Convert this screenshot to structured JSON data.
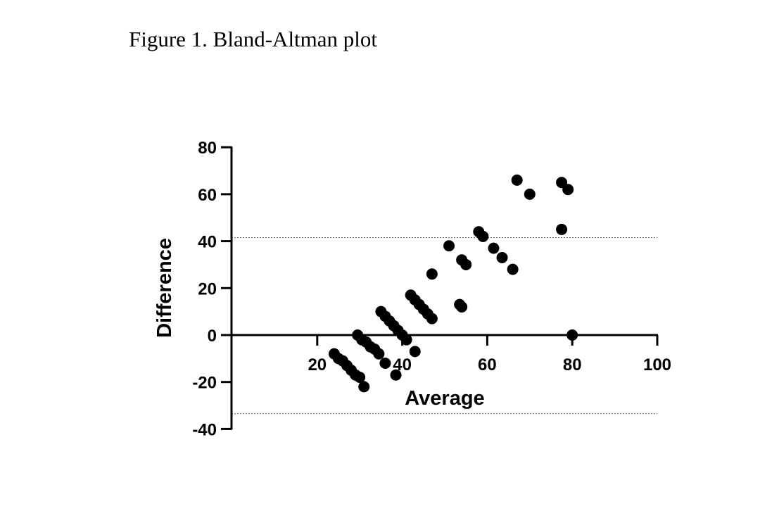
{
  "figure": {
    "caption": "Figure 1. Bland-Altman plot"
  },
  "chart_data": {
    "type": "scatter",
    "title": "",
    "xlabel": "Average",
    "ylabel": "Difference",
    "xlim": [
      0,
      100
    ],
    "ylim": [
      -40,
      80
    ],
    "x_ticks": [
      20,
      40,
      60,
      80,
      100
    ],
    "y_ticks": [
      -40,
      -20,
      0,
      20,
      40,
      60,
      80
    ],
    "limits_of_agreement": [
      41.5,
      -33.5
    ],
    "grid": false,
    "marker_color": "#000000",
    "series": [
      {
        "points": [
          [
            24,
            -8
          ],
          [
            25,
            -10
          ],
          [
            26,
            -11
          ],
          [
            27,
            -13
          ],
          [
            28,
            -15
          ],
          [
            29,
            -17
          ],
          [
            30,
            -18
          ],
          [
            31,
            -22
          ],
          [
            29.5,
            0
          ],
          [
            30.5,
            -2
          ],
          [
            31.5,
            -3
          ],
          [
            32.5,
            -5
          ],
          [
            33.5,
            -6
          ],
          [
            34.5,
            -8
          ],
          [
            35,
            10
          ],
          [
            36,
            8
          ],
          [
            37,
            6
          ],
          [
            38,
            4
          ],
          [
            39,
            2
          ],
          [
            40,
            0
          ],
          [
            41,
            -2
          ],
          [
            36,
            -12
          ],
          [
            38.5,
            -17
          ],
          [
            43,
            -7
          ],
          [
            42,
            17
          ],
          [
            43,
            15
          ],
          [
            44,
            13
          ],
          [
            45,
            11
          ],
          [
            46,
            9
          ],
          [
            47,
            7
          ],
          [
            47,
            26
          ],
          [
            51,
            38
          ],
          [
            54,
            32
          ],
          [
            55,
            30
          ],
          [
            53.5,
            13
          ],
          [
            54,
            12
          ],
          [
            58,
            44
          ],
          [
            59,
            42
          ],
          [
            61.5,
            37
          ],
          [
            63.5,
            33
          ],
          [
            66,
            28
          ],
          [
            67,
            66
          ],
          [
            70,
            60
          ],
          [
            77.5,
            65
          ],
          [
            79,
            62
          ],
          [
            77.5,
            45
          ],
          [
            80,
            0
          ]
        ]
      }
    ]
  }
}
